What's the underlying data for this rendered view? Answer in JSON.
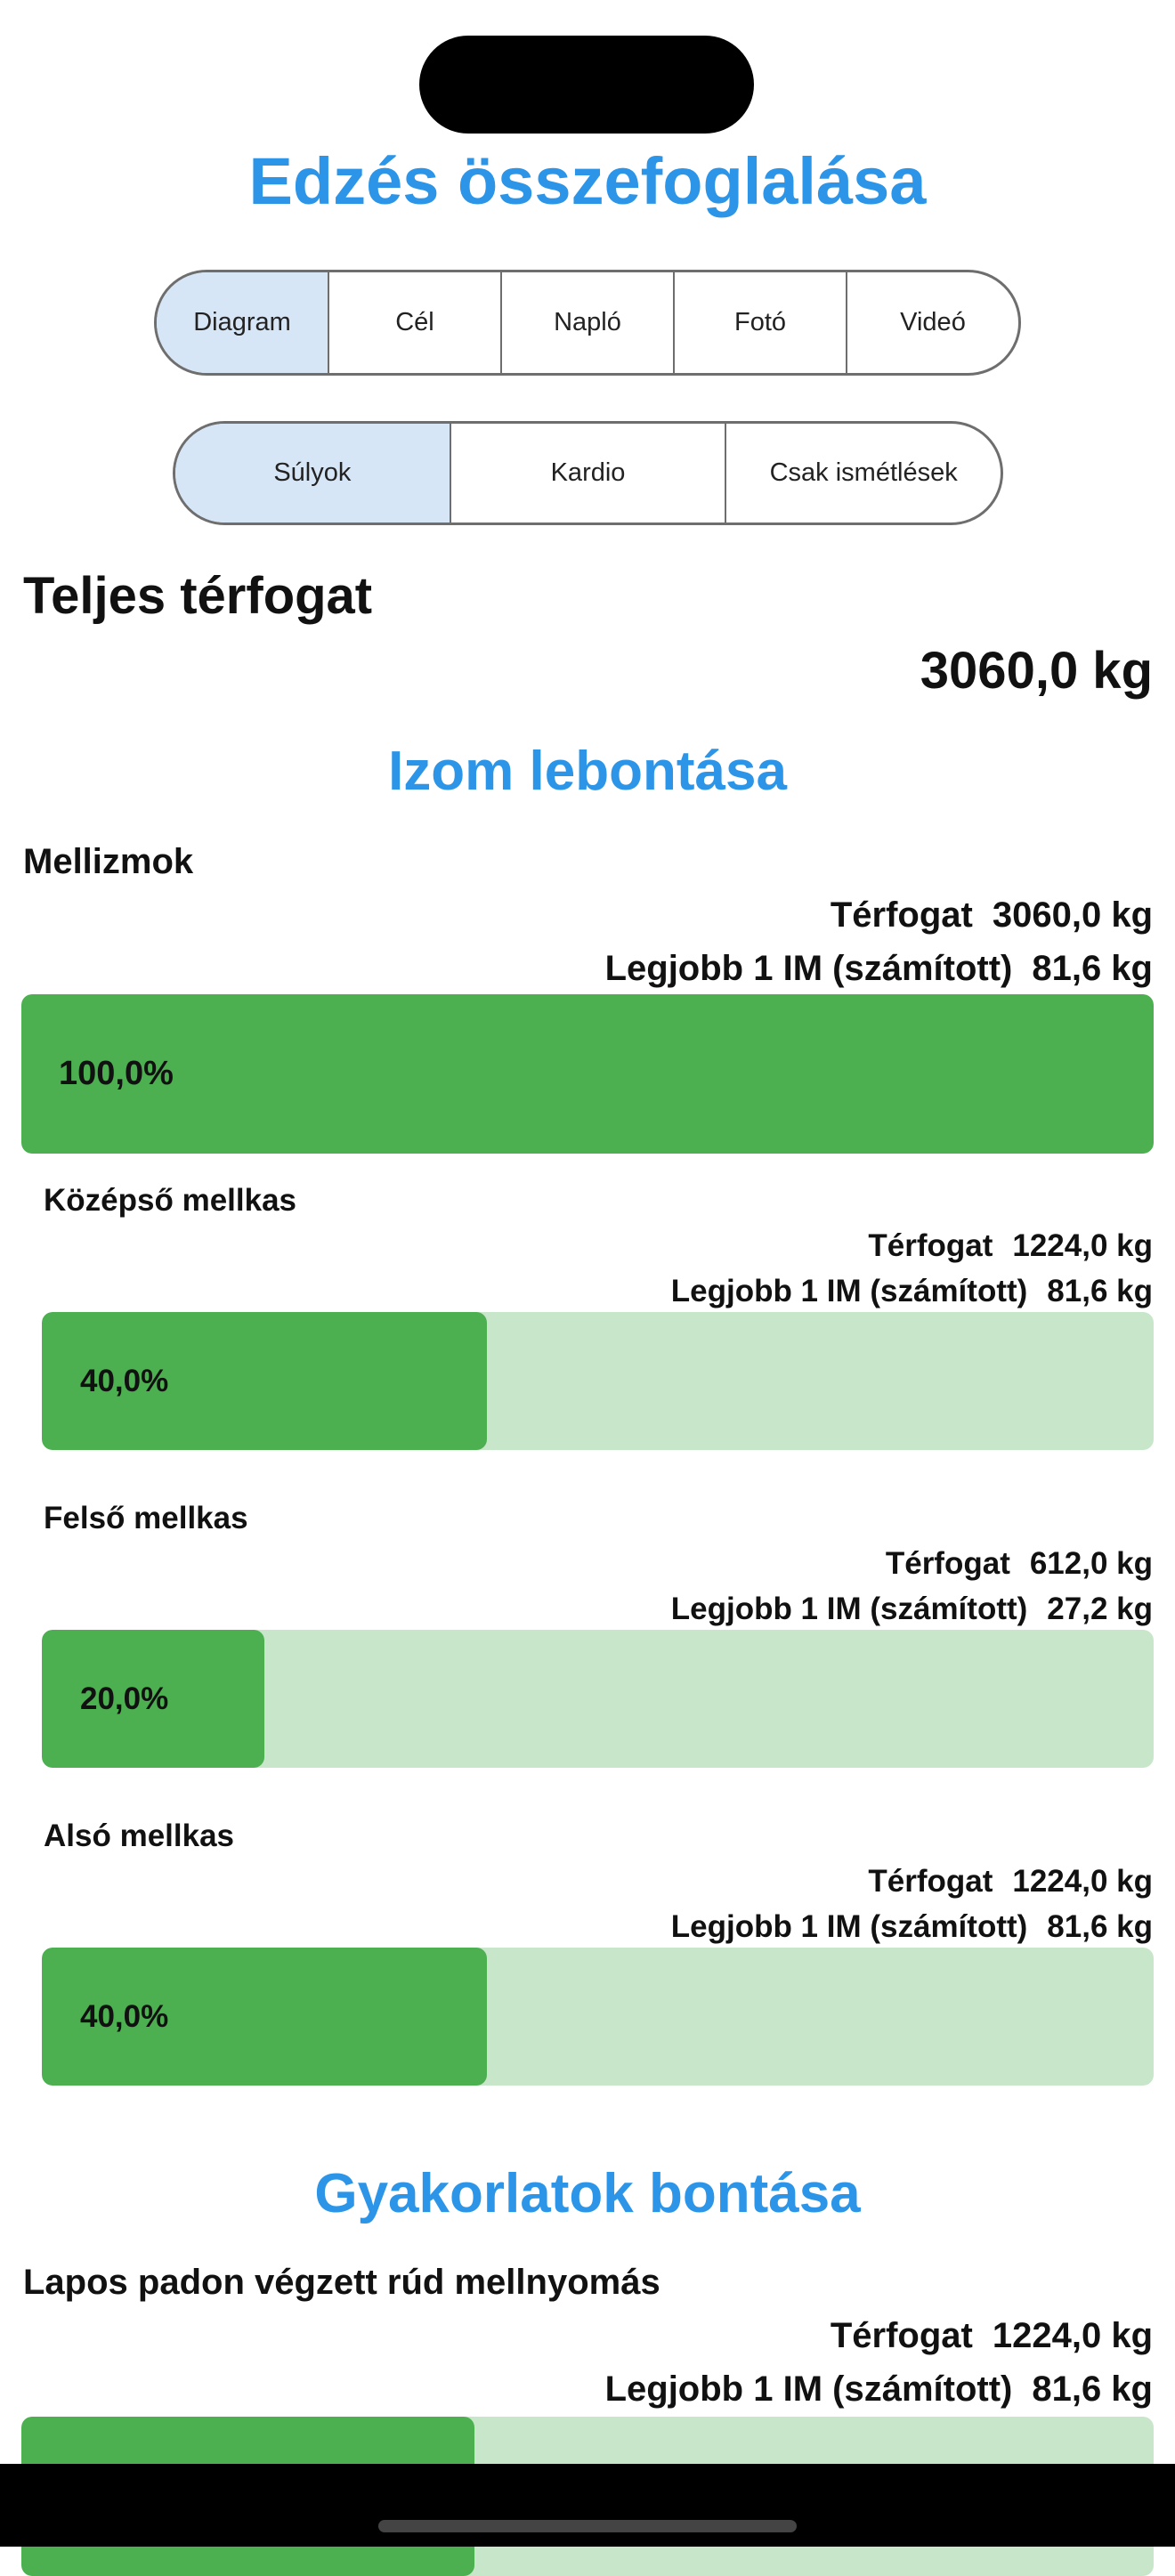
{
  "header": {
    "title": "Edzés összefoglalása"
  },
  "tabs": [
    "Diagram",
    "Cél",
    "Napló",
    "Fotó",
    "Videó"
  ],
  "subtabs": [
    "Súlyok",
    "Kardio",
    "Csak ismétlések"
  ],
  "total": {
    "label": "Teljes térfogat",
    "value": "3060,0 kg"
  },
  "muscle_section": {
    "title": "Izom lebontása",
    "group": {
      "name": "Mellizmok",
      "volume_label": "Térfogat",
      "volume": "3060,0 kg",
      "best_label": "Legjobb 1 IM (számított)",
      "best": "81,6 kg",
      "percent": "100,0%"
    },
    "muscles": [
      {
        "name": "Középső mellkas",
        "volume_label": "Térfogat",
        "volume": "1224,0 kg",
        "best_label": "Legjobb 1 IM (számított)",
        "best": "81,6 kg",
        "percent": "40,0%"
      },
      {
        "name": "Felső mellkas",
        "volume_label": "Térfogat",
        "volume": "612,0 kg",
        "best_label": "Legjobb 1 IM (számított)",
        "best": "27,2 kg",
        "percent": "20,0%"
      },
      {
        "name": "Alsó mellkas",
        "volume_label": "Térfogat",
        "volume": "1224,0 kg",
        "best_label": "Legjobb 1 IM (számított)",
        "best": "81,6 kg",
        "percent": "40,0%"
      }
    ]
  },
  "exercise_section": {
    "title": "Gyakorlatok bontása",
    "exercises": [
      {
        "name": "Lapos padon végzett rúd mellnyomás",
        "volume_label": "Térfogat",
        "volume": "1224,0 kg",
        "best_label": "Legjobb 1 IM (számított)",
        "best": "81,6 kg"
      }
    ]
  }
}
